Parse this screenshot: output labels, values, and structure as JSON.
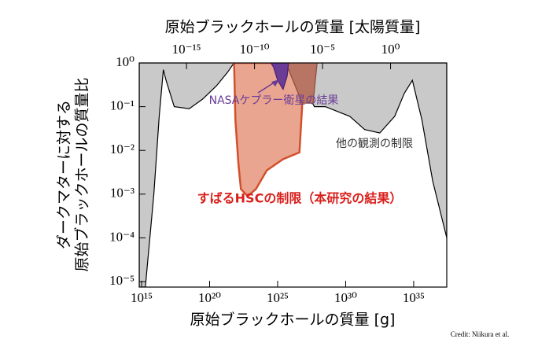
{
  "chart_data": {
    "type": "region",
    "x2_label": "原始ブラックホールの質量 [太陽質量]",
    "x_label": "原始ブラックホールの質量 [g]",
    "y_label": [
      "ダークマターに対する",
      "原始ブラックホールの質量比"
    ],
    "annotations": {
      "kepler": "NASAケプラー衛星の結果",
      "other": "他の観測の制限",
      "hsc": "すばるHSCの制限（本研究の結果）"
    },
    "credit": "Credit: Niikura et al.",
    "xscale": "log",
    "yscale": "log",
    "xlim": [
      670000000000000.0,
      2.7e+37
    ],
    "ylim": [
      7.5e-06,
      1
    ],
    "x2lim": [
      3.35e-19,
      13500.0
    ],
    "xticks": [
      {
        "value": 1000000000000000.0,
        "label": "10¹⁵"
      },
      {
        "value": 1e+20,
        "label": "10²⁰"
      },
      {
        "value": 1e+25,
        "label": "10²⁵"
      },
      {
        "value": 1e+30,
        "label": "10³⁰"
      },
      {
        "value": 1e+35,
        "label": "10³⁵"
      }
    ],
    "x2ticks": [
      {
        "value": 1e-15,
        "label": "10⁻¹⁵"
      },
      {
        "value": 1e-10,
        "label": "10⁻¹⁰"
      },
      {
        "value": 1e-05,
        "label": "10⁻⁵"
      },
      {
        "value": 1,
        "label": "10⁰"
      }
    ],
    "yticks": [
      {
        "value": 1e-05,
        "label": "10⁻⁵"
      },
      {
        "value": 0.0001,
        "label": "10⁻⁴"
      },
      {
        "value": 0.001,
        "label": "10⁻³"
      },
      {
        "value": 0.01,
        "label": "10⁻²"
      },
      {
        "value": 0.1,
        "label": "10⁻¹"
      },
      {
        "value": 1,
        "label": "10⁰"
      }
    ],
    "regions": [
      {
        "color": "#c9c9c9",
        "edge": "#000000",
        "x": [
          670000000000000.0,
          670000000000000.0,
          1900000000000000.0,
          8000000000000000.0,
          2e+16,
          4e+16,
          6.3e+16,
          2.5e+17,
          3.2e+18,
          3.2e+19,
          3.2e+20,
          2e+21,
          6.3e+21
        ],
        "y": [
          1,
          7.5e-06,
          7.5e-06,
          0.001,
          0.063,
          0.7,
          0.4,
          0.1,
          0.09,
          0.15,
          0.3,
          0.6,
          1
        ]
      },
      {
        "color": "#c9c9c9",
        "edge": "#000000",
        "x": [
          3.2e+26,
          2.7e+37,
          2.7e+37,
          2.5e+36,
          4e+35,
          8e+34,
          2e+34,
          4e+33,
          3.2e+32,
          2.5e+31,
          2e+30,
          3.2e+28,
          5e+27,
          1.6e+27,
          6.3e+26
        ],
        "y": [
          1,
          1,
          0.0001,
          0.002,
          0.05,
          0.4,
          0.2,
          0.06,
          0.025,
          0.03,
          0.06,
          0.1,
          0.1,
          0.2,
          0.7
        ]
      },
      {
        "color": "#e9a58f",
        "edge": "#d2502c",
        "x": [
          6.3e+21,
          7.9e+21,
          1.3e+22,
          2e+22,
          6.3e+22,
          2.5e+23,
          1.6e+24,
          2.5e+25,
          4e+26,
          6.3e+26,
          4e+26
        ],
        "y": [
          1,
          0.05,
          0.005,
          0.0013,
          0.0009,
          0.0013,
          0.0035,
          0.0063,
          0.009,
          0.1,
          1
        ]
      },
      {
        "color": "#b97563",
        "edge": "#8a4a3a",
        "x": [
          4e+25,
          8e+27,
          4e+27,
          6.3e+26,
          1.6e+26
        ],
        "y": [
          1,
          1,
          0.12,
          0.12,
          0.35
        ]
      },
      {
        "color": "#6a3c96",
        "edge": "#4a2070",
        "x": [
          3.2e+24,
          6.3e+25,
          5e+25,
          2.5e+25,
          1e+25,
          5e+24
        ],
        "y": [
          1,
          1,
          0.5,
          0.25,
          0.4,
          0.8
        ]
      }
    ]
  }
}
